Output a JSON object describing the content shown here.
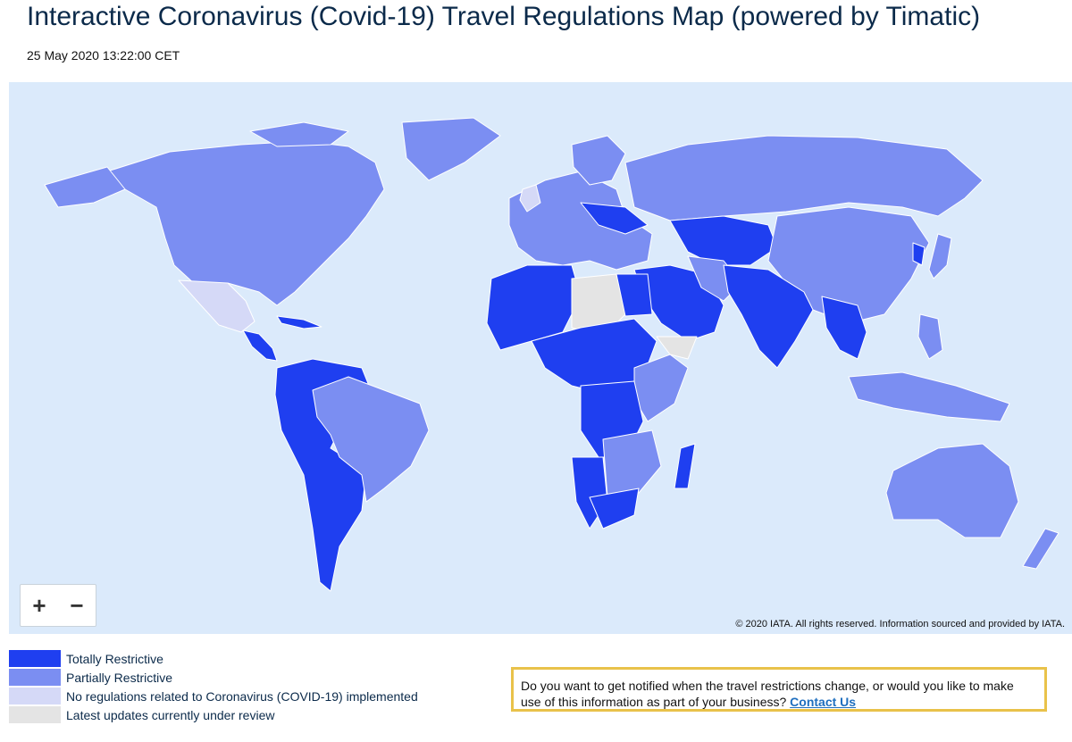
{
  "header": {
    "title": "Interactive Coronavirus (Covid-19) Travel Regulations Map (powered by Timatic)",
    "timestamp": "25 May 2020 13:22:00 CET"
  },
  "map": {
    "copyright": "© 2020 IATA. All rights reserved. Information sourced and provided by IATA.",
    "zoom": {
      "in_label": "+",
      "out_label": "−"
    },
    "colors": {
      "ocean": "#dbeafb",
      "totally": "#1f3ff0",
      "partially": "#7b8ef2",
      "none": "#d5d9f7",
      "review": "#e4e4e4",
      "border": "#ffffff"
    }
  },
  "legend": {
    "items": [
      {
        "label": "Totally Restrictive",
        "color": "#1f3ff0"
      },
      {
        "label": "Partially Restrictive",
        "color": "#7b8ef2"
      },
      {
        "label": "No regulations related to Coronavirus (COVID-19) implemented",
        "color": "#d5d9f7"
      },
      {
        "label": "Latest updates currently under review",
        "color": "#e4e4e4"
      }
    ]
  },
  "notify": {
    "text": "Do you want to get notified when the travel restrictions change, or would you like to make use of this information as part of your business?",
    "link_label": "Contact Us"
  }
}
